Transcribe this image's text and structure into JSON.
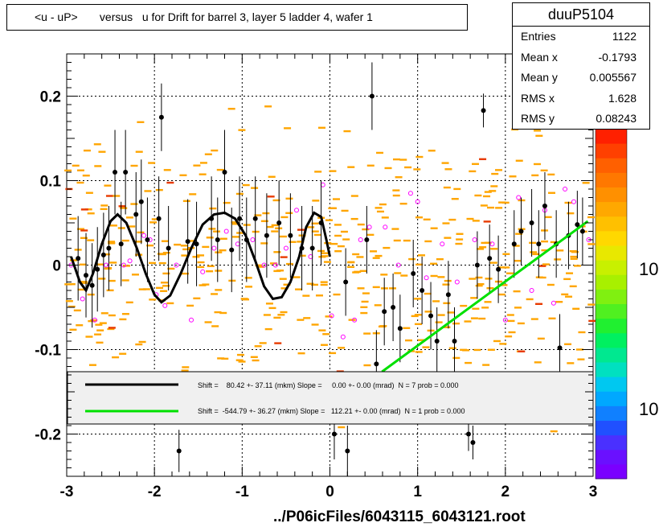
{
  "title": "<u - uP>       versus   u for Drift for barrel 3, layer 5 ladder 4, wafer 1",
  "x_title": "../P06icFiles/6043115_6043121.root",
  "stats": {
    "name": "duuP5104",
    "rows": [
      {
        "label": "Entries",
        "value": "1122"
      },
      {
        "label": "Mean x",
        "value": "-0.1793"
      },
      {
        "label": "Mean y",
        "value": "0.005567"
      },
      {
        "label": "RMS x",
        "value": "1.628"
      },
      {
        "label": "RMS y",
        "value": "0.08243"
      }
    ]
  },
  "colors": {
    "background": "#ffffff",
    "frame": "#000000",
    "fit1": "#000000",
    "fit2": "#00e000",
    "hist": "#ffa500",
    "profile": "#000000",
    "open_marker": "#ff00ff"
  },
  "chart_data": {
    "type": "scatter",
    "xlim": [
      -3,
      3
    ],
    "ylim": [
      -0.25,
      0.25
    ],
    "x_ticks": [
      -3,
      -2,
      -1,
      0,
      1,
      2,
      3
    ],
    "y_ticks": [
      -0.2,
      -0.1,
      0,
      0.1,
      0.2
    ],
    "x_tick_labels": [
      "-3",
      "-2",
      "-1",
      "0",
      "1",
      "2",
      "3"
    ],
    "y_tick_labels": [
      "-0.2",
      "-0.1",
      "0",
      "0.1",
      "0.2"
    ],
    "grid": true,
    "palette_labels": [
      "10",
      "10"
    ],
    "legend": [
      {
        "text": "Shift =    80.42 +- 37.11 (mkm) Slope =     0.00 +- 0.00 (mrad)  N = 7 prob = 0.000",
        "color": "#000000"
      },
      {
        "text": "Shift =  -544.79 +- 36.27 (mkm) Slope =   112.21 +- 0.00 (mrad)  N = 1 prob = 0.000",
        "color": "#00e000"
      }
    ],
    "fit_line": {
      "x": [
        0.57,
        2.94
      ],
      "y": [
        -0.128,
        0.052
      ]
    },
    "fit_curve": [
      [
        -2.95,
        0.01
      ],
      [
        -2.85,
        -0.02
      ],
      [
        -2.78,
        -0.03
      ],
      [
        -2.7,
        -0.01
      ],
      [
        -2.6,
        0.025
      ],
      [
        -2.5,
        0.052
      ],
      [
        -2.42,
        0.06
      ],
      [
        -2.32,
        0.05
      ],
      [
        -2.2,
        0.02
      ],
      [
        -2.1,
        -0.01
      ],
      [
        -2.0,
        -0.035
      ],
      [
        -1.92,
        -0.044
      ],
      [
        -1.82,
        -0.036
      ],
      [
        -1.7,
        -0.01
      ],
      [
        -1.58,
        0.02
      ],
      [
        -1.45,
        0.048
      ],
      [
        -1.32,
        0.06
      ],
      [
        -1.2,
        0.062
      ],
      [
        -1.08,
        0.055
      ],
      [
        -0.96,
        0.035
      ],
      [
        -0.85,
        0.005
      ],
      [
        -0.75,
        -0.025
      ],
      [
        -0.65,
        -0.04
      ],
      [
        -0.55,
        -0.038
      ],
      [
        -0.45,
        -0.02
      ],
      [
        -0.35,
        0.01
      ],
      [
        -0.27,
        0.045
      ],
      [
        -0.18,
        0.062
      ],
      [
        -0.1,
        0.057
      ],
      [
        -0.04,
        0.03
      ],
      [
        0.0,
        0.01
      ]
    ],
    "profile_points": [
      {
        "x": -2.87,
        "y": 0.008,
        "e": 0.05
      },
      {
        "x": -2.78,
        "y": -0.012,
        "e": 0.05
      },
      {
        "x": -2.71,
        "y": -0.024,
        "e": 0.05
      },
      {
        "x": -2.65,
        "y": -0.005,
        "e": 0.05
      },
      {
        "x": -2.58,
        "y": 0.012,
        "e": 0.05
      },
      {
        "x": -2.52,
        "y": 0.02,
        "e": 0.05
      },
      {
        "x": -2.45,
        "y": 0.11,
        "e": 0.05
      },
      {
        "x": -2.38,
        "y": 0.025,
        "e": 0.05
      },
      {
        "x": -2.33,
        "y": 0.11,
        "e": 0.05
      },
      {
        "x": -2.21,
        "y": 0.06,
        "e": 0.05
      },
      {
        "x": -2.15,
        "y": 0.075,
        "e": 0.05
      },
      {
        "x": -2.08,
        "y": 0.03,
        "e": 0.05
      },
      {
        "x": -1.95,
        "y": 0.055,
        "e": 0.05
      },
      {
        "x": -1.92,
        "y": 0.175,
        "e": 0.04
      },
      {
        "x": -1.84,
        "y": 0.02,
        "e": 0.05
      },
      {
        "x": -1.72,
        "y": -0.22,
        "e": 0.025
      },
      {
        "x": -1.62,
        "y": 0.028,
        "e": 0.05
      },
      {
        "x": -1.52,
        "y": 0.025,
        "e": 0.05
      },
      {
        "x": -1.35,
        "y": 0.055,
        "e": 0.05
      },
      {
        "x": -1.28,
        "y": 0.03,
        "e": 0.05
      },
      {
        "x": -1.2,
        "y": 0.11,
        "e": 0.05
      },
      {
        "x": -1.12,
        "y": 0.018,
        "e": 0.05
      },
      {
        "x": -1.03,
        "y": 0.055,
        "e": 0.05
      },
      {
        "x": -0.95,
        "y": 0.03,
        "e": 0.05
      },
      {
        "x": -0.85,
        "y": 0.055,
        "e": 0.05
      },
      {
        "x": -0.72,
        "y": 0.035,
        "e": 0.05
      },
      {
        "x": -0.58,
        "y": 0.05,
        "e": 0.05
      },
      {
        "x": -0.45,
        "y": 0.035,
        "e": 0.05
      },
      {
        "x": -0.32,
        "y": 0.02,
        "e": 0.05
      },
      {
        "x": -0.2,
        "y": 0.02,
        "e": 0.05
      },
      {
        "x": -0.1,
        "y": 0.05,
        "e": 0.05
      },
      {
        "x": 0.05,
        "y": -0.2,
        "e": 0.03
      },
      {
        "x": 0.18,
        "y": -0.02,
        "e": 0.04
      },
      {
        "x": 0.2,
        "y": -0.22,
        "e": 0.03
      },
      {
        "x": 0.42,
        "y": 0.03,
        "e": 0.04
      },
      {
        "x": 0.48,
        "y": 0.2,
        "e": 0.04
      },
      {
        "x": 0.53,
        "y": -0.117,
        "e": 0.04
      },
      {
        "x": 0.62,
        "y": -0.055,
        "e": 0.04
      },
      {
        "x": 0.72,
        "y": -0.05,
        "e": 0.04
      },
      {
        "x": 0.8,
        "y": -0.075,
        "e": 0.04
      },
      {
        "x": 0.95,
        "y": -0.01,
        "e": 0.04
      },
      {
        "x": 1.05,
        "y": -0.03,
        "e": 0.04
      },
      {
        "x": 1.15,
        "y": -0.06,
        "e": 0.04
      },
      {
        "x": 1.22,
        "y": -0.09,
        "e": 0.04
      },
      {
        "x": 1.35,
        "y": -0.035,
        "e": 0.04
      },
      {
        "x": 1.42,
        "y": -0.09,
        "e": 0.04
      },
      {
        "x": 1.58,
        "y": -0.2,
        "e": 0.02
      },
      {
        "x": 1.63,
        "y": -0.21,
        "e": 0.02
      },
      {
        "x": 1.68,
        "y": 0.0,
        "e": 0.04
      },
      {
        "x": 1.75,
        "y": 0.183,
        "e": 0.02
      },
      {
        "x": 1.82,
        "y": 0.008,
        "e": 0.04
      },
      {
        "x": 1.92,
        "y": -0.005,
        "e": 0.04
      },
      {
        "x": 2.1,
        "y": 0.025,
        "e": 0.04
      },
      {
        "x": 2.18,
        "y": 0.04,
        "e": 0.04
      },
      {
        "x": 2.3,
        "y": 0.05,
        "e": 0.04
      },
      {
        "x": 2.38,
        "y": 0.025,
        "e": 0.04
      },
      {
        "x": 2.45,
        "y": 0.07,
        "e": 0.04
      },
      {
        "x": 2.58,
        "y": 0.025,
        "e": 0.04
      },
      {
        "x": 2.62,
        "y": -0.098,
        "e": 0.04
      },
      {
        "x": 2.72,
        "y": 0.035,
        "e": 0.04
      },
      {
        "x": 2.82,
        "y": 0.048,
        "e": 0.04
      },
      {
        "x": 2.88,
        "y": 0.04,
        "e": 0.04
      }
    ],
    "open_points": [
      {
        "x": -2.95,
        "y": 0.0
      },
      {
        "x": -2.82,
        "y": -0.04
      },
      {
        "x": -2.68,
        "y": -0.065
      },
      {
        "x": -2.55,
        "y": 0.0
      },
      {
        "x": -2.35,
        "y": 0.0
      },
      {
        "x": -2.28,
        "y": 0.005
      },
      {
        "x": -2.12,
        "y": 0.035
      },
      {
        "x": -2.05,
        "y": 0.03
      },
      {
        "x": -1.98,
        "y": -0.035
      },
      {
        "x": -1.88,
        "y": -0.048
      },
      {
        "x": -1.75,
        "y": 0.0
      },
      {
        "x": -1.58,
        "y": -0.065
      },
      {
        "x": -1.45,
        "y": -0.008
      },
      {
        "x": -1.32,
        "y": 0.02
      },
      {
        "x": -1.18,
        "y": 0.04
      },
      {
        "x": -1.05,
        "y": 0.025
      },
      {
        "x": -0.88,
        "y": 0.03
      },
      {
        "x": -0.75,
        "y": 0.0
      },
      {
        "x": -0.62,
        "y": 0.0
      },
      {
        "x": -0.5,
        "y": 0.02
      },
      {
        "x": -0.38,
        "y": 0.065
      },
      {
        "x": -0.22,
        "y": 0.01
      },
      {
        "x": -0.08,
        "y": 0.095
      },
      {
        "x": 0.02,
        "y": -0.06
      },
      {
        "x": 0.15,
        "y": -0.085
      },
      {
        "x": 0.28,
        "y": -0.065
      },
      {
        "x": 0.35,
        "y": 0.03
      },
      {
        "x": 0.45,
        "y": 0.045
      },
      {
        "x": 0.63,
        "y": 0.045
      },
      {
        "x": 0.78,
        "y": 0.0
      },
      {
        "x": 0.92,
        "y": 0.085
      },
      {
        "x": 1.0,
        "y": 0.075
      },
      {
        "x": 1.1,
        "y": -0.015
      },
      {
        "x": 1.28,
        "y": 0.025
      },
      {
        "x": 1.45,
        "y": -0.02
      },
      {
        "x": 1.65,
        "y": 0.03
      },
      {
        "x": 1.85,
        "y": 0.025
      },
      {
        "x": 2.0,
        "y": -0.065
      },
      {
        "x": 2.15,
        "y": 0.08
      },
      {
        "x": 2.3,
        "y": -0.03
      },
      {
        "x": 2.45,
        "y": 0.065
      },
      {
        "x": 2.55,
        "y": -0.045
      },
      {
        "x": 2.68,
        "y": 0.09
      },
      {
        "x": 2.78,
        "y": 0.075
      },
      {
        "x": 2.95,
        "y": 0.03
      }
    ]
  }
}
